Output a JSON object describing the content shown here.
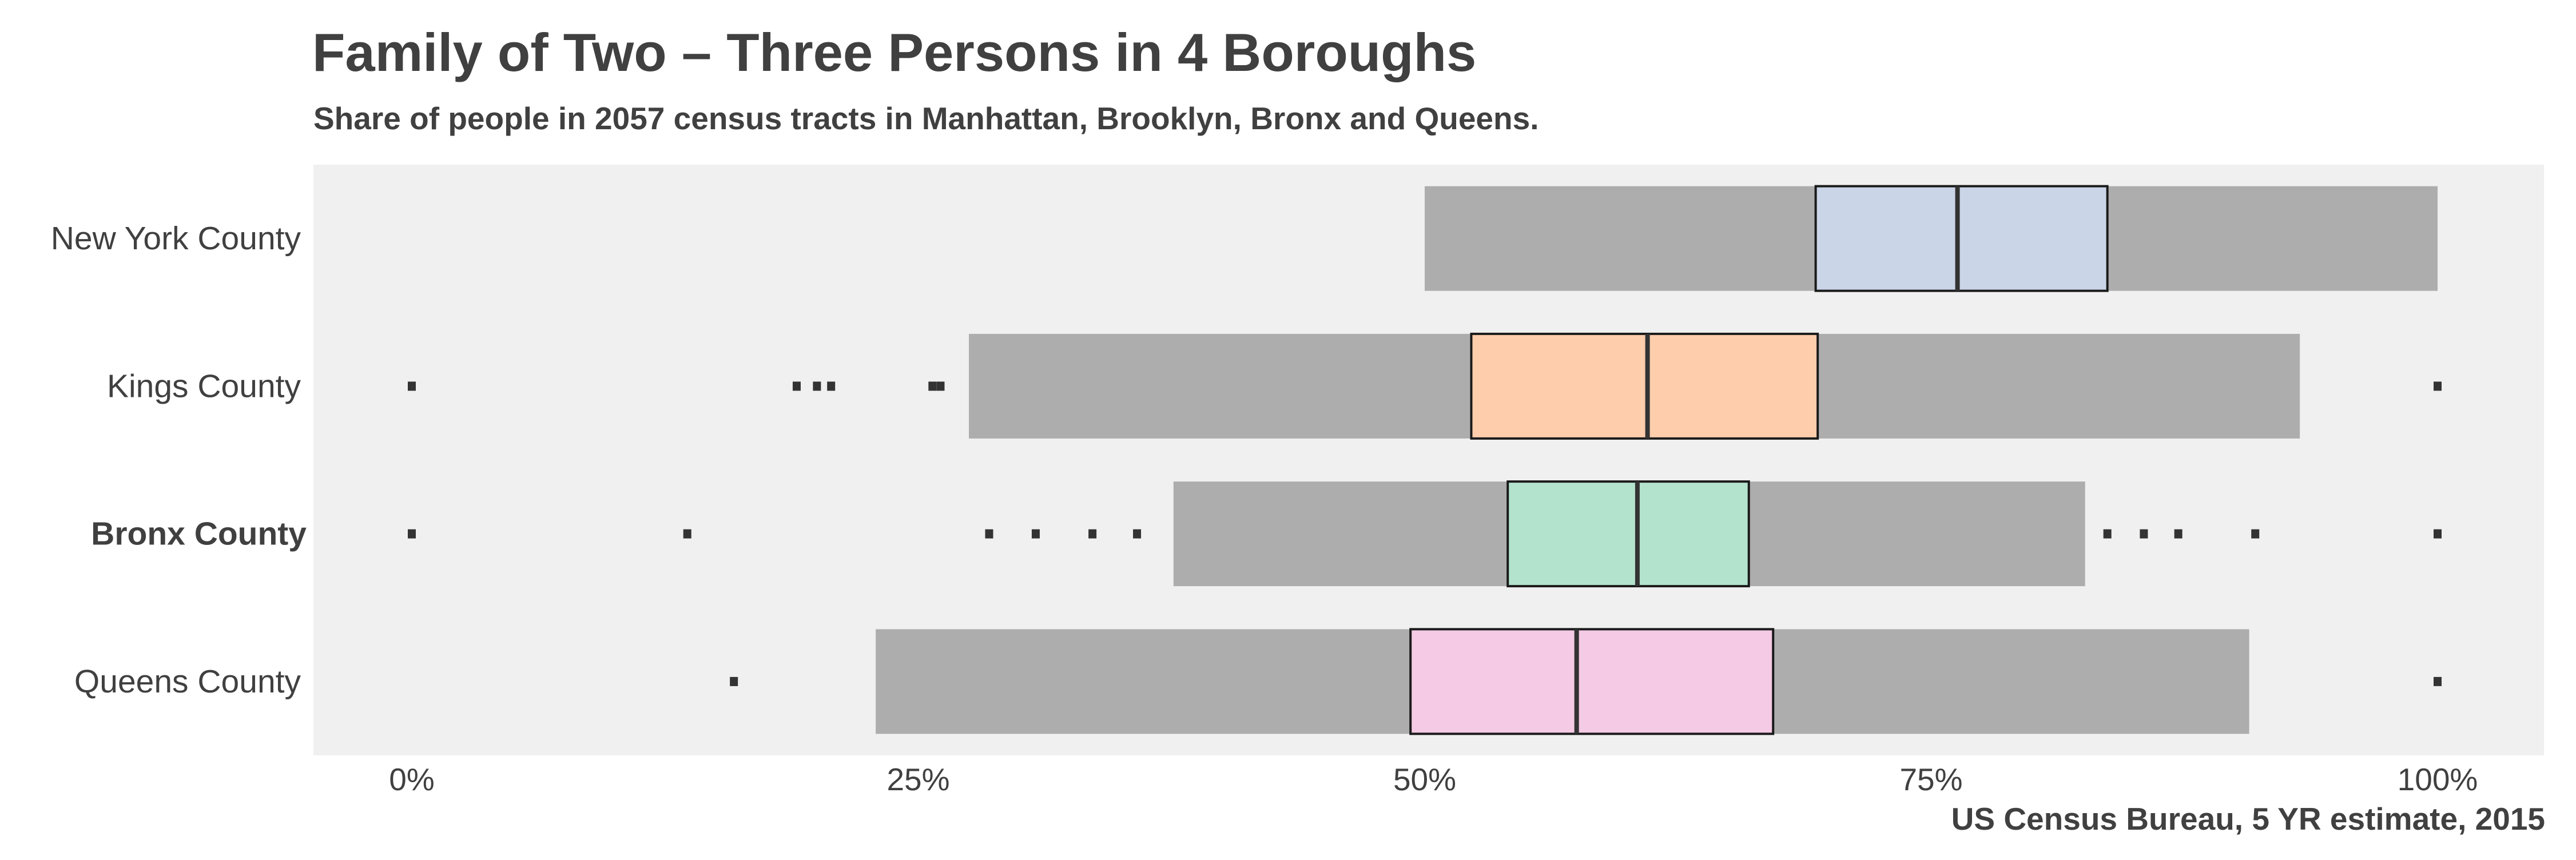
{
  "chart_data": {
    "type": "boxplot",
    "title": "Family of Two – Three Persons in 4 Boroughs",
    "subtitle": "Share of people in 2057 census tracts in Manhattan, Brooklyn, Bronx and Queens.",
    "caption": "US Census Bureau, 5 YR estimate, 2015",
    "xlabel": "",
    "ylabel": "",
    "xlim": [
      -0.05,
      1.05
    ],
    "x_ticks": [
      0,
      0.25,
      0.5,
      0.75,
      1.0
    ],
    "x_tick_labels": [
      "0%",
      "25%",
      "50%",
      "75%",
      "100%"
    ],
    "grid": false,
    "legend": "none",
    "background": "#f0f0f0",
    "whisker_color": "#adadad",
    "series": [
      {
        "category": "New York County",
        "highlight": false,
        "color": "#cbd5e8",
        "min": 0.5,
        "q1": 0.693,
        "median": 0.763,
        "q3": 0.837,
        "max": 1.0,
        "outliers": []
      },
      {
        "category": "Kings County",
        "highlight": false,
        "color": "#fdcdac",
        "min": 0.275,
        "q1": 0.523,
        "median": 0.61,
        "q3": 0.694,
        "max": 0.932,
        "outliers": [
          0.0,
          0.19,
          0.2,
          0.207,
          0.257,
          0.261,
          1.0
        ]
      },
      {
        "category": "Bronx County",
        "highlight": true,
        "color": "#b3e2cd",
        "min": 0.376,
        "q1": 0.541,
        "median": 0.605,
        "q3": 0.66,
        "max": 0.826,
        "outliers": [
          0.0,
          0.136,
          0.285,
          0.308,
          0.336,
          0.358,
          0.837,
          0.855,
          0.872,
          0.91,
          1.0
        ]
      },
      {
        "category": "Queens County",
        "highlight": false,
        "color": "#f4cae4",
        "min": 0.229,
        "q1": 0.493,
        "median": 0.575,
        "q3": 0.672,
        "max": 0.907,
        "outliers": [
          0.159,
          1.0
        ]
      }
    ]
  }
}
